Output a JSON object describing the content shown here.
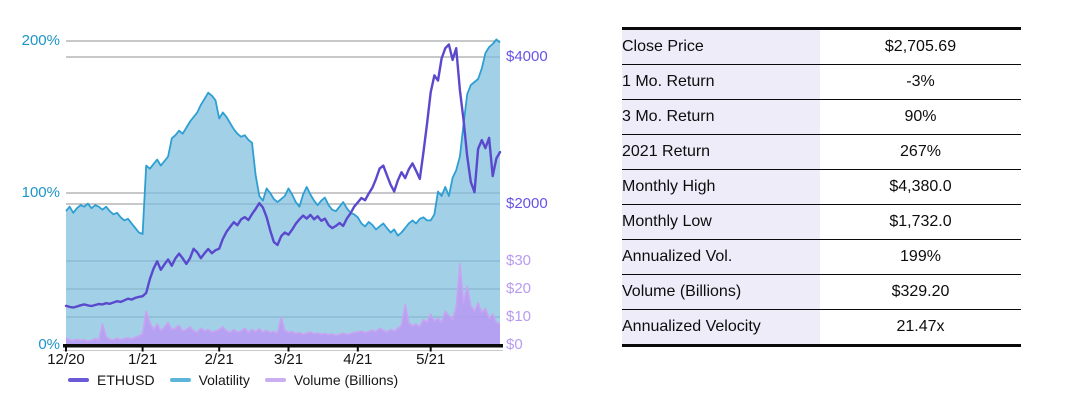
{
  "table": {
    "rows": [
      {
        "label": "Close Price",
        "value": "$2,705.69"
      },
      {
        "label": "1 Mo. Return",
        "value": "-3%"
      },
      {
        "label": "3 Mo. Return",
        "value": "90%"
      },
      {
        "label": "2021 Return",
        "value": "267%"
      },
      {
        "label": "Monthly High",
        "value": "$4,380.0"
      },
      {
        "label": "Monthly Low",
        "value": "$1,732.0"
      },
      {
        "label": "Annualized Vol.",
        "value": "199%"
      },
      {
        "label": "Volume (Billions)",
        "value": "$329.20"
      },
      {
        "label": "Annualized Velocity",
        "value": "21.47x"
      }
    ]
  },
  "chart_data": {
    "type": "line",
    "title": "",
    "grid": true,
    "legend_position": "bottom",
    "x_axis": {
      "ticks": [
        {
          "label": "12/20",
          "index": 0
        },
        {
          "label": "1/21",
          "index": 21
        },
        {
          "label": "2/21",
          "index": 42
        },
        {
          "label": "3/21",
          "index": 61
        },
        {
          "label": "4/21",
          "index": 80
        },
        {
          "label": "5/21",
          "index": 100
        }
      ]
    },
    "left_axis": {
      "name": "volatility-percent",
      "color": "#1d94c8",
      "range": [
        0,
        200
      ],
      "ticks": [
        {
          "label": "0%",
          "value": 0
        },
        {
          "label": "100%",
          "value": 100
        },
        {
          "label": "200%",
          "value": 200
        }
      ]
    },
    "right_axes": [
      {
        "name": "price-usd",
        "scale": "price",
        "color": "#6653e6",
        "range": [
          0,
          4300
        ],
        "ticks": [
          {
            "label": "$2000",
            "value": 2000
          },
          {
            "label": "$4000",
            "value": 4000
          }
        ]
      },
      {
        "name": "volume-billions",
        "scale": "volume",
        "color": "#b99bf0",
        "range": [
          0,
          30
        ],
        "ticks": [
          {
            "label": "$0",
            "value": 0
          },
          {
            "label": "$10",
            "value": 10
          },
          {
            "label": "$20",
            "value": 20
          },
          {
            "label": "$30",
            "value": 30
          }
        ]
      }
    ],
    "gridlines": [
      {
        "axis": "percent",
        "value": 200
      },
      {
        "axis": "price",
        "value": 4000
      },
      {
        "axis": "percent",
        "value": 100
      },
      {
        "axis": "price",
        "value": 2000
      },
      {
        "axis": "volume",
        "value": 30
      },
      {
        "axis": "volume",
        "value": 20
      },
      {
        "axis": "volume",
        "value": 10
      }
    ],
    "series": [
      {
        "name": "ETHUSD",
        "axis": "price",
        "color": "#5a49cc",
        "legend_color": "#6a5ad8",
        "fill": null,
        "width": 2.4,
        "values": [
          615,
          600,
          592,
          605,
          622,
          634,
          620,
          612,
          626,
          640,
          634,
          650,
          642,
          660,
          678,
          668,
          690,
          712,
          700,
          722,
          736,
          745,
          790,
          980,
          1120,
          1220,
          1105,
          1180,
          1245,
          1160,
          1260,
          1325,
          1260,
          1185,
          1262,
          1390,
          1340,
          1262,
          1330,
          1388,
          1330,
          1372,
          1392,
          1524,
          1622,
          1688,
          1752,
          1712,
          1790,
          1822,
          1782,
          1862,
          1932,
          2012,
          1952,
          1822,
          1640,
          1482,
          1442,
          1562,
          1612,
          1582,
          1650,
          1732,
          1790,
          1842,
          1802,
          1852,
          1792,
          1832,
          1772,
          1802,
          1712,
          1672,
          1702,
          1742,
          1702,
          1802,
          1872,
          1962,
          2022,
          2082,
          2052,
          2142,
          2222,
          2342,
          2482,
          2522,
          2392,
          2262,
          2172,
          2322,
          2432,
          2352,
          2472,
          2552,
          2452,
          2342,
          2700,
          3100,
          3520,
          3750,
          3680,
          3980,
          4120,
          4170,
          3960,
          4120,
          3550,
          3150,
          2650,
          2300,
          2160,
          2750,
          2870,
          2760,
          2900,
          2380,
          2620,
          2706
        ]
      },
      {
        "name": "Volatility",
        "axis": "percent",
        "color": "#2e9fd2",
        "legend_color": "#5bb6da",
        "fill": "rgba(125,190,222,0.72)",
        "width": 1.8,
        "values": [
          88,
          91,
          87,
          90,
          92,
          91,
          93,
          90,
          92,
          91,
          89,
          91,
          88,
          86,
          87,
          84,
          82,
          83,
          80,
          77,
          74,
          73,
          118,
          116,
          119,
          122,
          118,
          121,
          124,
          136,
          138,
          141,
          139,
          143,
          147,
          150,
          153,
          158,
          162,
          166,
          164,
          161,
          149,
          153,
          150,
          146,
          142,
          139,
          137,
          138,
          135,
          133,
          112,
          98,
          95,
          103,
          100,
          96,
          94,
          96,
          98,
          103,
          99,
          94,
          91,
          99,
          104,
          99,
          95,
          92,
          95,
          97,
          92,
          89,
          88,
          91,
          94,
          90,
          87,
          86,
          84,
          80,
          78,
          81,
          79,
          76,
          78,
          80,
          77,
          74,
          76,
          72,
          74,
          77,
          80,
          82,
          80,
          83,
          84,
          82,
          82,
          86,
          101,
          98,
          104,
          98,
          110,
          115,
          124,
          145,
          165,
          171,
          173,
          175,
          182,
          192,
          196,
          198,
          201,
          199
        ]
      },
      {
        "name": "Volume (Billions)",
        "axis": "volume",
        "color": "#c9a3f2",
        "legend_color": "#c9aef2",
        "fill": "rgba(186,148,245,0.78)",
        "width": 1.6,
        "values": [
          2.5,
          1.8,
          1.5,
          2.0,
          1.6,
          1.9,
          1.4,
          1.6,
          2.2,
          1.8,
          7.5,
          3.0,
          2.0,
          1.8,
          2.4,
          1.9,
          2.2,
          2.6,
          2.1,
          2.8,
          3.2,
          4.0,
          12.0,
          8.0,
          5.5,
          7.5,
          5.0,
          6.5,
          8.0,
          5.5,
          6.0,
          7.0,
          5.0,
          5.5,
          6.5,
          5.0,
          4.5,
          6.0,
          5.0,
          5.5,
          4.5,
          5.0,
          5.5,
          6.5,
          5.0,
          4.5,
          5.5,
          4.5,
          5.0,
          6.0,
          4.5,
          5.5,
          4.8,
          5.8,
          4.6,
          5.2,
          4.4,
          4.8,
          4.2,
          10.0,
          5.2,
          4.4,
          4.8,
          4.0,
          4.4,
          3.8,
          4.2,
          4.6,
          3.9,
          4.3,
          3.7,
          4.1,
          3.6,
          3.9,
          3.4,
          3.8,
          4.2,
          3.7,
          4.0,
          4.4,
          4.6,
          5.0,
          4.4,
          4.8,
          5.3,
          4.7,
          6.0,
          5.2,
          4.6,
          5.5,
          4.9,
          6.0,
          7.0,
          14.5,
          8.0,
          6.8,
          7.5,
          6.5,
          9.0,
          8.2,
          11.0,
          8.5,
          9.5,
          8.0,
          12.0,
          10.5,
          9.0,
          13.5,
          29.0,
          15.0,
          21.0,
          14.0,
          12.0,
          15.0,
          11.5,
          13.0,
          9.5,
          11.0,
          8.0,
          7.5
        ]
      }
    ],
    "colors": {
      "gridline": "#8d9096",
      "axis_line": "#0b0b0b",
      "axis_shadow": "#c9c9c9",
      "x_label": "#141414"
    }
  }
}
